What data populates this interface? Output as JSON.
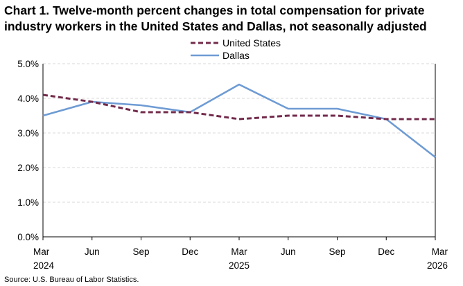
{
  "chart_data": {
    "type": "line",
    "title": "Chart 1. Twelve-month percent changes in total compensation for private industry workers in the United States and Dallas, not seasonally adjusted",
    "xlabel": "",
    "ylabel": "",
    "categories": [
      {
        "month": "Mar",
        "year": "2024"
      },
      {
        "month": "Jun",
        "year": ""
      },
      {
        "month": "Sep",
        "year": ""
      },
      {
        "month": "Dec",
        "year": ""
      },
      {
        "month": "Mar",
        "year": "2025"
      },
      {
        "month": "Jun",
        "year": ""
      },
      {
        "month": "Sep",
        "year": ""
      },
      {
        "month": "Dec",
        "year": ""
      },
      {
        "month": "Mar",
        "year": "2026"
      }
    ],
    "ylim": [
      0,
      5
    ],
    "yticks": [
      0,
      1,
      2,
      3,
      4,
      5
    ],
    "ytick_labels": [
      "0.0%",
      "1.0%",
      "2.0%",
      "3.0%",
      "4.0%",
      "5.0%"
    ],
    "grid": true,
    "legend_position": "top-center",
    "series": [
      {
        "name": "United States",
        "values": [
          4.1,
          3.9,
          3.6,
          3.6,
          3.4,
          3.5,
          3.5,
          3.4,
          3.4
        ],
        "color": "#722a4b",
        "style": "dashed"
      },
      {
        "name": "Dallas",
        "values": [
          3.5,
          3.9,
          3.8,
          3.6,
          4.4,
          3.7,
          3.7,
          3.4,
          2.3
        ],
        "color": "#6e9bd3",
        "style": "solid"
      }
    ],
    "source": "Source: U.S. Bureau of Labor Statistics."
  }
}
